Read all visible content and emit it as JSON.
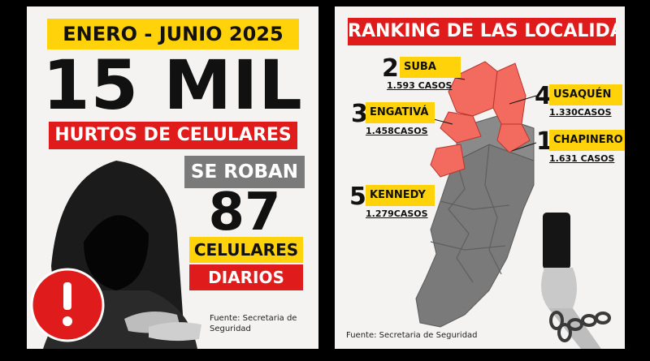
{
  "left": {
    "date_range": "ENERO - JUNIO 2025",
    "headline": "15 MIL",
    "subtitle": "HURTOS DE CELULARES",
    "se_roban": "SE ROBAN",
    "count": "87",
    "celulares": "CELULARES",
    "diarios": "DIARIOS",
    "source": "Fuente: Secretaria de Seguridad"
  },
  "right": {
    "title": "RANKING DE LAS LOCALIDADES",
    "ranking": [
      {
        "rank": "2",
        "name": "SUBA",
        "cases": "1.593 CASOS"
      },
      {
        "rank": "4",
        "name": "USAQUÉN",
        "cases": "1.330CASOS"
      },
      {
        "rank": "3",
        "name": "ENGATIVÁ",
        "cases": "1.458CASOS"
      },
      {
        "rank": "1",
        "name": "CHAPINERO",
        "cases": "1.631 CASOS"
      },
      {
        "rank": "5",
        "name": "KENNEDY",
        "cases": "1.279CASOS"
      }
    ],
    "source": "Fuente: Secretaria de Seguridad"
  },
  "colors": {
    "accent_red": "#e01b1b",
    "accent_yellow": "#ffd20a",
    "map_gray": "#7a7a7a",
    "highlight_red": "#f36a5f"
  }
}
